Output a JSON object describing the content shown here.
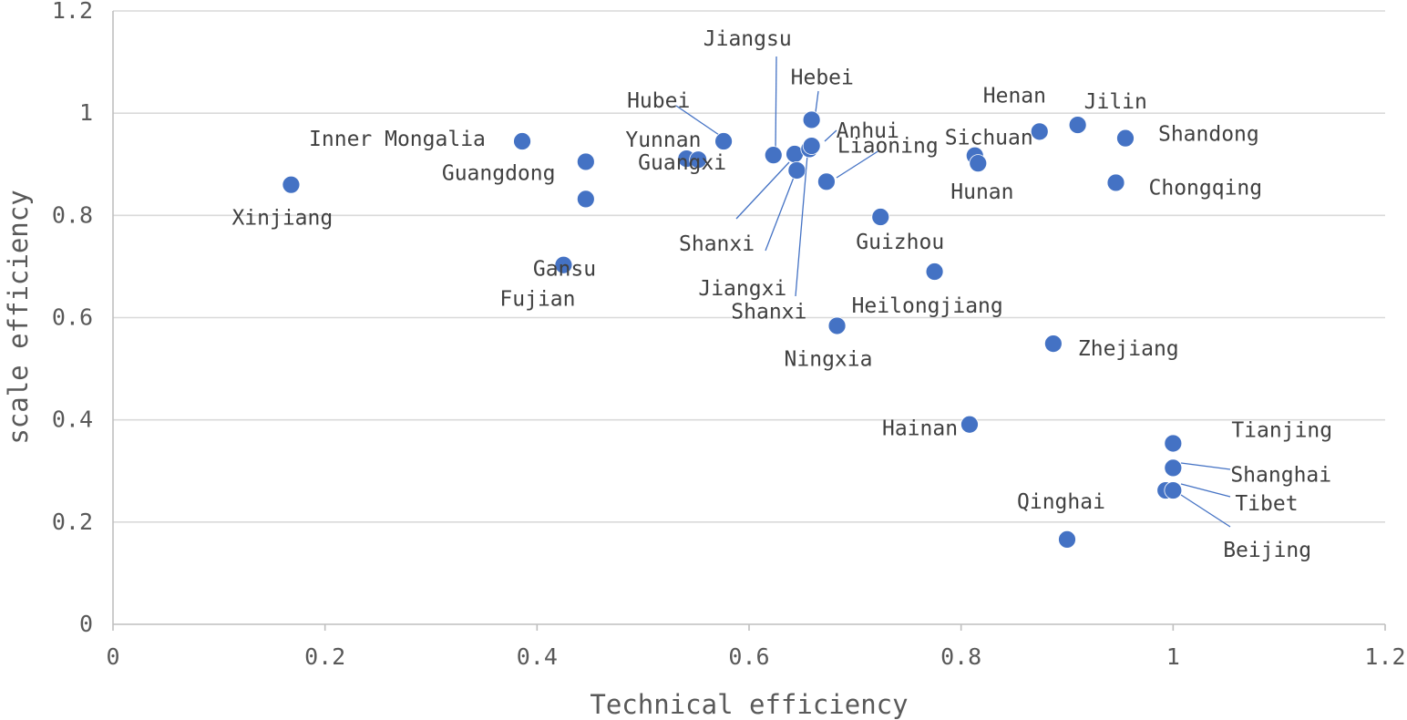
{
  "chart_data": {
    "type": "scatter",
    "title": "",
    "xlabel": "Technical efficiency",
    "ylabel": "scale efficiency",
    "xlim": [
      0,
      1.2
    ],
    "ylim": [
      0,
      1.2
    ],
    "x_ticks": [
      "0",
      "0.2",
      "0.4",
      "0.6",
      "0.8",
      "1",
      "1.2"
    ],
    "y_ticks": [
      "0",
      "0.2",
      "0.4",
      "0.6",
      "0.8",
      "1",
      "1.2"
    ],
    "grid": "horizontal",
    "marker_color": "#4472c4",
    "points": [
      {
        "name": "Xinjiang",
        "x": 0.168,
        "y": 0.86
      },
      {
        "name": "Inner Mongalia",
        "x": 0.386,
        "y": 0.945
      },
      {
        "name": "Guangdong",
        "x": 0.446,
        "y": 0.905
      },
      {
        "name": "Gansu",
        "x": 0.446,
        "y": 0.832
      },
      {
        "name": "Fujian",
        "x": 0.425,
        "y": 0.703
      },
      {
        "name": "Yunnan",
        "x": 0.541,
        "y": 0.911
      },
      {
        "name": "Guangxi",
        "x": 0.552,
        "y": 0.909
      },
      {
        "name": "Hubei",
        "x": 0.576,
        "y": 0.945
      },
      {
        "name": "Jiangsu",
        "x": 0.623,
        "y": 0.918
      },
      {
        "name": "Shanxi",
        "x": 0.643,
        "y": 0.92
      },
      {
        "name": "Jiangxi",
        "x": 0.645,
        "y": 0.888
      },
      {
        "name": "Shanxi",
        "x": 0.657,
        "y": 0.93
      },
      {
        "name": "Anhui",
        "x": 0.659,
        "y": 0.936
      },
      {
        "name": "Hebei",
        "x": 0.659,
        "y": 0.987
      },
      {
        "name": "Liaoning",
        "x": 0.673,
        "y": 0.866
      },
      {
        "name": "Ningxia",
        "x": 0.683,
        "y": 0.584
      },
      {
        "name": "Guizhou",
        "x": 0.724,
        "y": 0.797
      },
      {
        "name": "Heilongjiang",
        "x": 0.775,
        "y": 0.69
      },
      {
        "name": "Hainan",
        "x": 0.808,
        "y": 0.391
      },
      {
        "name": "Sichuan",
        "x": 0.813,
        "y": 0.917
      },
      {
        "name": "Hunan",
        "x": 0.816,
        "y": 0.902
      },
      {
        "name": "Henan",
        "x": 0.874,
        "y": 0.964
      },
      {
        "name": "Zhejiang",
        "x": 0.887,
        "y": 0.549
      },
      {
        "name": "Qinghai",
        "x": 0.9,
        "y": 0.166
      },
      {
        "name": "Jilin",
        "x": 0.91,
        "y": 0.977
      },
      {
        "name": "Chongqing",
        "x": 0.946,
        "y": 0.864
      },
      {
        "name": "Shandong",
        "x": 0.955,
        "y": 0.951
      },
      {
        "name": "Beijing",
        "x": 0.993,
        "y": 0.262
      },
      {
        "name": "Tibet",
        "x": 1.0,
        "y": 0.262
      },
      {
        "name": "Shanghai",
        "x": 1.0,
        "y": 0.306
      },
      {
        "name": "Tianjing",
        "x": 1.0,
        "y": 0.354
      }
    ]
  }
}
